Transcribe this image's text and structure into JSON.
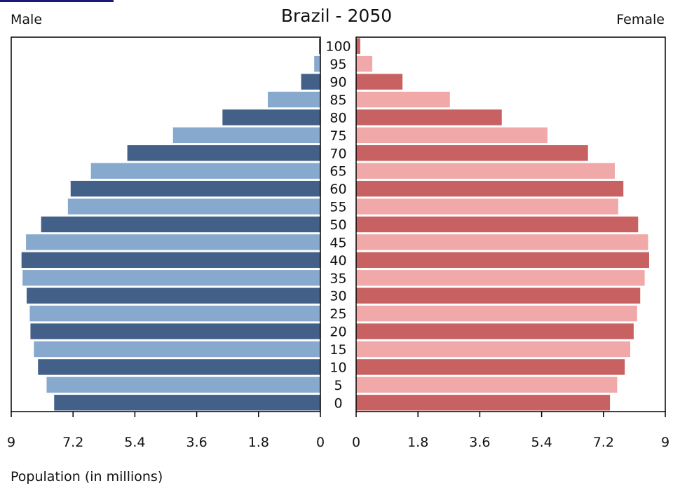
{
  "chart_data": {
    "type": "bar",
    "title": "Brazil - 2050",
    "left_label": "Male",
    "right_label": "Female",
    "xlabel": "Population (in millions)",
    "xlim": [
      0,
      9
    ],
    "xticks": [
      0,
      1.8,
      3.6,
      5.4,
      7.2,
      9
    ],
    "xtick_labels_male": [
      "9",
      "7.2",
      "5.4",
      "3.6",
      "1.8",
      "0"
    ],
    "xtick_labels_female": [
      "0",
      "1.8",
      "3.6",
      "5.4",
      "7.2",
      "9"
    ],
    "categories": [
      "0",
      "5",
      "10",
      "15",
      "20",
      "25",
      "30",
      "35",
      "40",
      "45",
      "50",
      "55",
      "60",
      "65",
      "70",
      "75",
      "80",
      "85",
      "90",
      "95",
      "100"
    ],
    "series": [
      {
        "name": "Male",
        "values": [
          7.75,
          7.97,
          8.22,
          8.34,
          8.44,
          8.46,
          8.55,
          8.67,
          8.7,
          8.57,
          8.13,
          7.35,
          7.27,
          6.68,
          5.62,
          4.29,
          2.85,
          1.53,
          0.56,
          0.18,
          0.04
        ],
        "colors": [
          "#436188",
          "#87a9cd"
        ]
      },
      {
        "name": "Female",
        "values": [
          7.39,
          7.6,
          7.82,
          7.98,
          8.08,
          8.18,
          8.27,
          8.4,
          8.53,
          8.5,
          8.21,
          7.63,
          7.78,
          7.53,
          6.75,
          5.57,
          4.24,
          2.73,
          1.35,
          0.47,
          0.12
        ],
        "colors": [
          "#c86262",
          "#f0a8a8"
        ]
      }
    ],
    "grid": false,
    "legend": "none"
  }
}
